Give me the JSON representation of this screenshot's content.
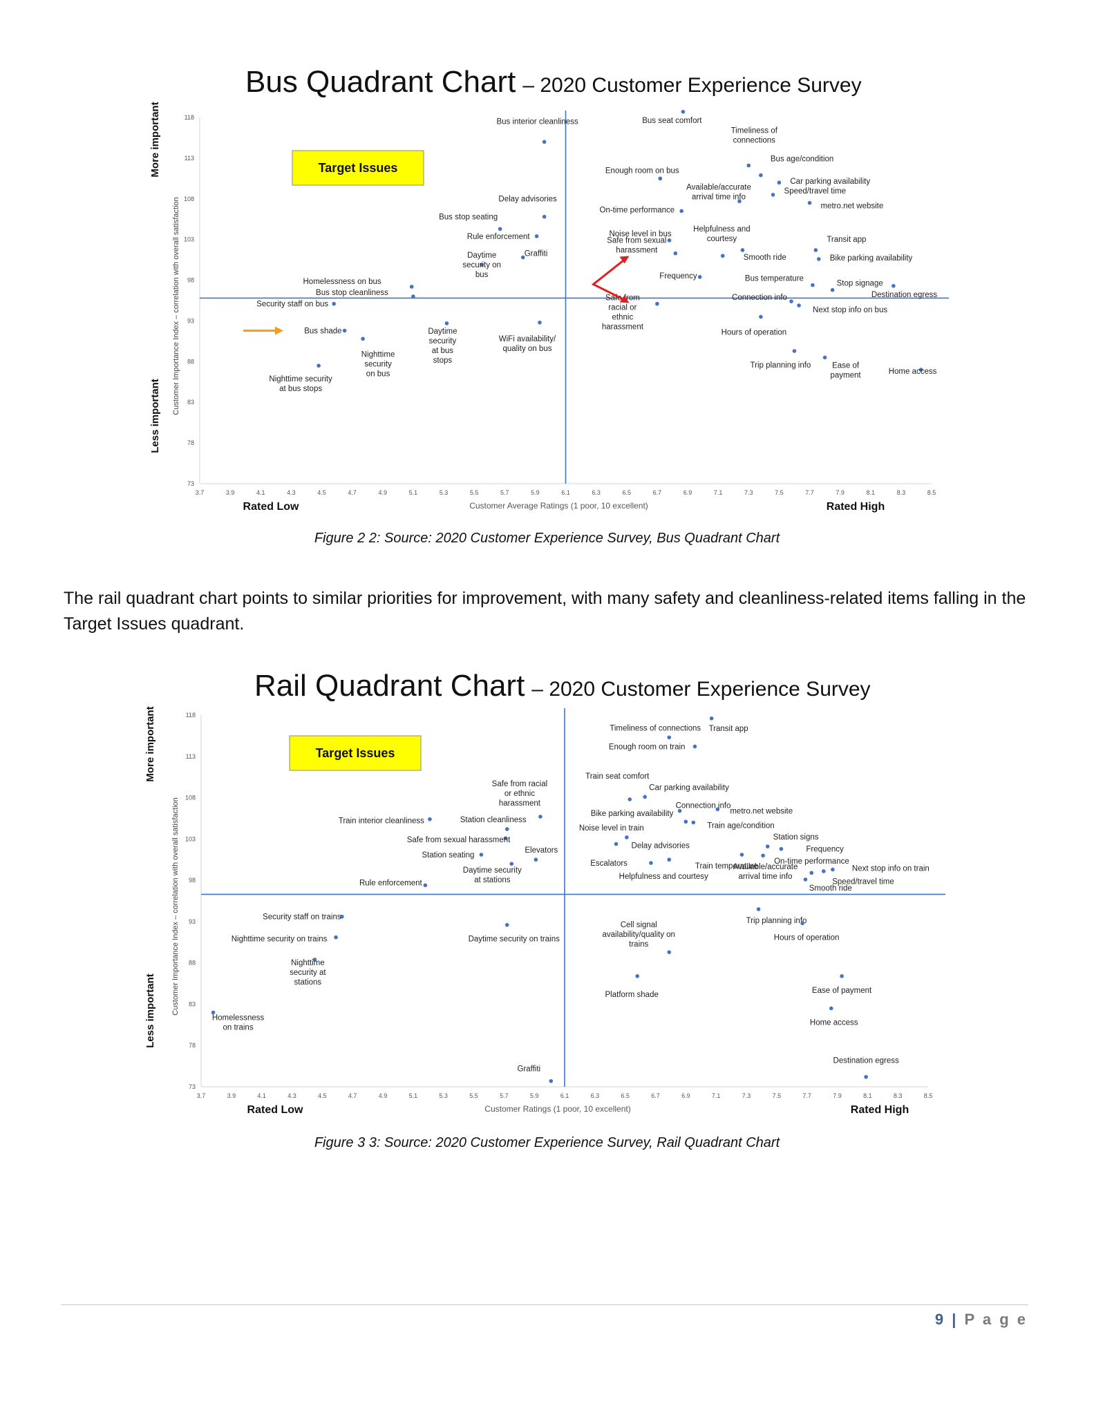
{
  "chart_data": [
    {
      "type": "scatter",
      "title": "Bus Quadrant Chart",
      "subtitle": "– 2020 Customer Experience Survey",
      "xlabel": "Customer Average Ratings (1 poor, 10 excellent)",
      "ylabel": "Customer Importance Index – correlation with overall satisfaction",
      "xlim": [
        3.7,
        8.5
      ],
      "ylim": [
        73,
        118
      ],
      "x_ticks": [
        "3.7",
        "3.9",
        "4.1",
        "4.3",
        "4.5",
        "4.7",
        "4.9",
        "5.1",
        "5.3",
        "5.5",
        "5.7",
        "5.9",
        "6.1",
        "6.3",
        "6.5",
        "6.7",
        "6.9",
        "7.1",
        "7.3",
        "7.5",
        "7.7",
        "7.9",
        "8.1",
        "8.3",
        "8.5"
      ],
      "y_ticks": [
        "73",
        "78",
        "83",
        "88",
        "93",
        "98",
        "103",
        "108",
        "113",
        "118"
      ],
      "x_divider": 6.1,
      "y_divider": 95.8,
      "more_important": "More important",
      "less_important": "Less important",
      "rated_low": "Rated Low",
      "rated_high": "Rated High",
      "target_issues": "Target Issues",
      "points": [
        {
          "label": "Bus interior cleanliness",
          "x": 5.96,
          "y": 115
        },
        {
          "label": "Bus seat comfort",
          "x": 6.87,
          "y": 118.7
        },
        {
          "label": "Timeliness of connections",
          "x": 7.3,
          "y": 112.1
        },
        {
          "label": "Bus age/condition",
          "x": 7.38,
          "y": 110.9
        },
        {
          "label": "Car parking availability",
          "x": 7.5,
          "y": 110
        },
        {
          "label": "Enough room on bus",
          "x": 6.72,
          "y": 110.5
        },
        {
          "label": "Speed/travel time",
          "x": 7.46,
          "y": 108.5
        },
        {
          "label": "Available/accurate arrival time info",
          "x": 7.24,
          "y": 107.7
        },
        {
          "label": "metro.net website",
          "x": 7.7,
          "y": 107.5
        },
        {
          "label": "On-time performance",
          "x": 6.86,
          "y": 106.5
        },
        {
          "label": "Delay advisories",
          "x": 5.96,
          "y": 105.8
        },
        {
          "label": "Bus stop seating",
          "x": 5.67,
          "y": 104.3
        },
        {
          "label": "Rule enforcement",
          "x": 5.91,
          "y": 103.4
        },
        {
          "label": "Noise level in bus",
          "x": 6.78,
          "y": 102.9
        },
        {
          "label": "Helpfulness and courtesy",
          "x": 7.26,
          "y": 101.7
        },
        {
          "label": "Transit app",
          "x": 7.74,
          "y": 101.7
        },
        {
          "label": "Safe from sexual harassment",
          "x": 6.82,
          "y": 101.3
        },
        {
          "label": "Smooth ride",
          "x": 7.13,
          "y": 101
        },
        {
          "label": "Graffiti",
          "x": 5.82,
          "y": 100.8
        },
        {
          "label": "Bike parking availability",
          "x": 7.76,
          "y": 100.6
        },
        {
          "label": "Daytime security on bus",
          "x": 5.55,
          "y": 99.9
        },
        {
          "label": "Frequency",
          "x": 6.98,
          "y": 98.4
        },
        {
          "label": "Bus temperature",
          "x": 7.72,
          "y": 97.4
        },
        {
          "label": "Destination egress",
          "x": 8.25,
          "y": 97.3
        },
        {
          "label": "Homelessness on bus",
          "x": 5.09,
          "y": 97.2
        },
        {
          "label": "Stop signage",
          "x": 7.85,
          "y": 96.8
        },
        {
          "label": "Bus stop cleanliness",
          "x": 5.1,
          "y": 96
        },
        {
          "label": "Connection info",
          "x": 7.58,
          "y": 95.4
        },
        {
          "label": "Security staff on bus",
          "x": 4.58,
          "y": 95.1
        },
        {
          "label": "Safe from racial or ethnic harassment",
          "x": 6.7,
          "y": 95.1
        },
        {
          "label": "Next stop info on bus",
          "x": 7.63,
          "y": 94.9
        },
        {
          "label": "Hours of operation",
          "x": 7.38,
          "y": 93.5
        },
        {
          "label": "Daytime security at bus stops",
          "x": 5.32,
          "y": 92.7
        },
        {
          "label": "WiFi availability/ quality on bus",
          "x": 5.93,
          "y": 92.8
        },
        {
          "label": "Bus shade",
          "x": 4.65,
          "y": 91.8
        },
        {
          "label": "Nighttime security on bus",
          "x": 4.77,
          "y": 90.8
        },
        {
          "label": "Trip planning info",
          "x": 7.6,
          "y": 89.3
        },
        {
          "label": "Ease of payment",
          "x": 7.8,
          "y": 88.5
        },
        {
          "label": "Nighttime security at bus stops",
          "x": 4.48,
          "y": 87.5
        },
        {
          "label": "Home access",
          "x": 8.43,
          "y": 87
        }
      ]
    },
    {
      "type": "scatter",
      "title": "Rail Quadrant Chart",
      "subtitle": "– 2020 Customer Experience Survey",
      "xlabel": "Customer Ratings (1 poor, 10 excellent)",
      "ylabel": "Customer Importance Index – correlation with overall satisfaction",
      "xlim": [
        3.7,
        8.5
      ],
      "ylim": [
        73,
        118
      ],
      "x_ticks": [
        "3.7",
        "3.9",
        "4.1",
        "4.3",
        "4.5",
        "4.7",
        "4.9",
        "5.1",
        "5.3",
        "5.5",
        "5.7",
        "5.9",
        "6.1",
        "6.3",
        "6.5",
        "6.7",
        "6.9",
        "7.1",
        "7.3",
        "7.5",
        "7.7",
        "7.9",
        "8.1",
        "8.3",
        "8.5"
      ],
      "y_ticks": [
        "73",
        "78",
        "83",
        "88",
        "93",
        "98",
        "103",
        "108",
        "113",
        "118"
      ],
      "x_divider": 6.1,
      "y_divider": 96.3,
      "more_important": "More important",
      "less_important": "Less important",
      "rated_low": "Rated Low",
      "rated_high": "Rated High",
      "target_issues": "Target Issues",
      "points": [
        {
          "label": "Transit app",
          "x": 7.07,
          "y": 117.6
        },
        {
          "label": "Timeliness of connections",
          "x": 6.79,
          "y": 115.3
        },
        {
          "label": "Enough room on train",
          "x": 6.96,
          "y": 114.2
        },
        {
          "label": "Train seat comfort",
          "x": 6.53,
          "y": 107.8
        },
        {
          "label": "Car parking availability",
          "x": 6.63,
          "y": 108.1
        },
        {
          "label": "Connection info",
          "x": 6.86,
          "y": 106.4
        },
        {
          "label": "metro.net website",
          "x": 7.11,
          "y": 106.6
        },
        {
          "label": "Safe from racial or ethnic harassment",
          "x": 5.94,
          "y": 105.7
        },
        {
          "label": "Train interior cleanliness",
          "x": 5.21,
          "y": 105.4
        },
        {
          "label": "Bike parking availability",
          "x": 6.9,
          "y": 105.1
        },
        {
          "label": "Train age/condition",
          "x": 6.95,
          "y": 105
        },
        {
          "label": "Station cleanliness",
          "x": 5.72,
          "y": 104.2
        },
        {
          "label": "Noise level in train",
          "x": 6.51,
          "y": 103.2
        },
        {
          "label": "Safe from sexual harassment",
          "x": 5.71,
          "y": 103.1
        },
        {
          "label": "Delay advisories",
          "x": 6.44,
          "y": 102.4
        },
        {
          "label": "Station signs",
          "x": 7.44,
          "y": 102.1
        },
        {
          "label": "Frequency",
          "x": 7.53,
          "y": 101.8
        },
        {
          "label": "Station seating",
          "x": 5.55,
          "y": 101.1
        },
        {
          "label": "On-time performance",
          "x": 7.41,
          "y": 101
        },
        {
          "label": "Train temperature",
          "x": 7.27,
          "y": 101.1
        },
        {
          "label": "Elevators",
          "x": 5.91,
          "y": 100.5
        },
        {
          "label": "Helpfulness and courtesy",
          "x": 6.79,
          "y": 100.5
        },
        {
          "label": "Escalators",
          "x": 6.67,
          "y": 100.1
        },
        {
          "label": "Daytime security at stations",
          "x": 5.75,
          "y": 100
        },
        {
          "label": "Next stop info on train",
          "x": 7.87,
          "y": 99.3
        },
        {
          "label": "Smooth ride",
          "x": 7.81,
          "y": 99.1
        },
        {
          "label": "Speed/travel time",
          "x": 7.73,
          "y": 98.9
        },
        {
          "label": "Available/accurate arrival time info",
          "x": 7.69,
          "y": 98.1
        },
        {
          "label": "Rule enforcement",
          "x": 5.18,
          "y": 97.4
        },
        {
          "label": "Security staff on trains",
          "x": 4.63,
          "y": 93.6
        },
        {
          "label": "Trip planning info",
          "x": 7.38,
          "y": 94.5
        },
        {
          "label": "Daytime security on trains",
          "x": 5.72,
          "y": 92.6
        },
        {
          "label": "Hours of operation",
          "x": 7.67,
          "y": 92.8
        },
        {
          "label": "Nighttime security on trains",
          "x": 4.59,
          "y": 91.1
        },
        {
          "label": "Cell signal availability/quality on trains",
          "x": 6.79,
          "y": 89.3
        },
        {
          "label": "Nighttime security at stations",
          "x": 4.45,
          "y": 88.4
        },
        {
          "label": "Platform shade",
          "x": 6.58,
          "y": 86.4
        },
        {
          "label": "Ease of payment",
          "x": 7.93,
          "y": 86.4
        },
        {
          "label": "Home access",
          "x": 7.86,
          "y": 82.5
        },
        {
          "label": "Homelessness on trains",
          "x": 3.78,
          "y": 82
        },
        {
          "label": "Destination egress",
          "x": 8.09,
          "y": 74.2
        },
        {
          "label": "Graffiti",
          "x": 6.01,
          "y": 73.7
        }
      ]
    }
  ],
  "captions": {
    "bus": "Figure 2 2: Source: 2020 Customer Experience Survey, Bus Quadrant Chart",
    "rail": "Figure 3 3: Source: 2020 Customer Experience Survey, Rail Quadrant Chart"
  },
  "body_text": "The rail quadrant chart points to similar priorities for improvement, with many safety and cleanliness-related items falling in the Target Issues quadrant.",
  "footer": {
    "page_number": "9",
    "separator": "|",
    "page_word": "P a g e"
  },
  "colors": {
    "point": "#4472c4",
    "divider": "#4472c4",
    "target_box": "#ffff00",
    "arrow_orange": "#f59a23",
    "arrow_red": "#e02020"
  }
}
